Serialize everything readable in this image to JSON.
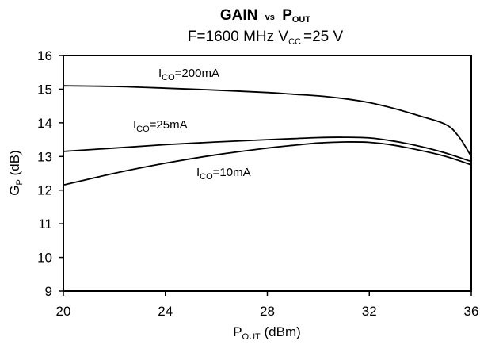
{
  "chart_data": {
    "type": "line",
    "title": {
      "main": "GAIN",
      "mid": "vs",
      "sym": "P",
      "sub": "OUT"
    },
    "subtitle": {
      "pre": "F=1600 MHz V",
      "sub": "CC",
      "post": "=25 V"
    },
    "xlabel": {
      "sym": "P",
      "sub": "OUT",
      "post": " (dBm)"
    },
    "ylabel": {
      "sym": "G",
      "sub": "P",
      "post": " (dB)"
    },
    "xlim": [
      20,
      36
    ],
    "ylim": [
      9,
      16
    ],
    "xticks": [
      20,
      24,
      28,
      32,
      36
    ],
    "yticks": [
      9,
      10,
      11,
      12,
      13,
      14,
      15,
      16
    ],
    "grid": false,
    "series": [
      {
        "name": "ICO=200mA",
        "label": {
          "sym": "I",
          "sub": "CO",
          "post": "=200mA"
        },
        "x": [
          20,
          22,
          24,
          26,
          28,
          29,
          30,
          31,
          32,
          33,
          34,
          35,
          35.5,
          36
        ],
        "y": [
          15.1,
          15.08,
          15.03,
          14.97,
          14.9,
          14.85,
          14.8,
          14.72,
          14.6,
          14.42,
          14.2,
          13.95,
          13.6,
          13.0
        ]
      },
      {
        "name": "ICO=25mA",
        "label": {
          "sym": "I",
          "sub": "CO",
          "post": "=25mA"
        },
        "x": [
          20,
          22,
          24,
          26,
          28,
          29,
          30,
          31,
          32,
          33,
          34,
          35,
          36
        ],
        "y": [
          13.15,
          13.25,
          13.35,
          13.43,
          13.5,
          13.53,
          13.56,
          13.57,
          13.55,
          13.45,
          13.3,
          13.1,
          12.85
        ]
      },
      {
        "name": "ICO=10mA",
        "label": {
          "sym": "I",
          "sub": "CO",
          "post": "=10mA"
        },
        "x": [
          20,
          22,
          24,
          26,
          28,
          29,
          30,
          31,
          32,
          33,
          34,
          35,
          36
        ],
        "y": [
          12.15,
          12.5,
          12.8,
          13.05,
          13.25,
          13.33,
          13.4,
          13.43,
          13.42,
          13.33,
          13.18,
          13.0,
          12.75
        ]
      }
    ]
  }
}
